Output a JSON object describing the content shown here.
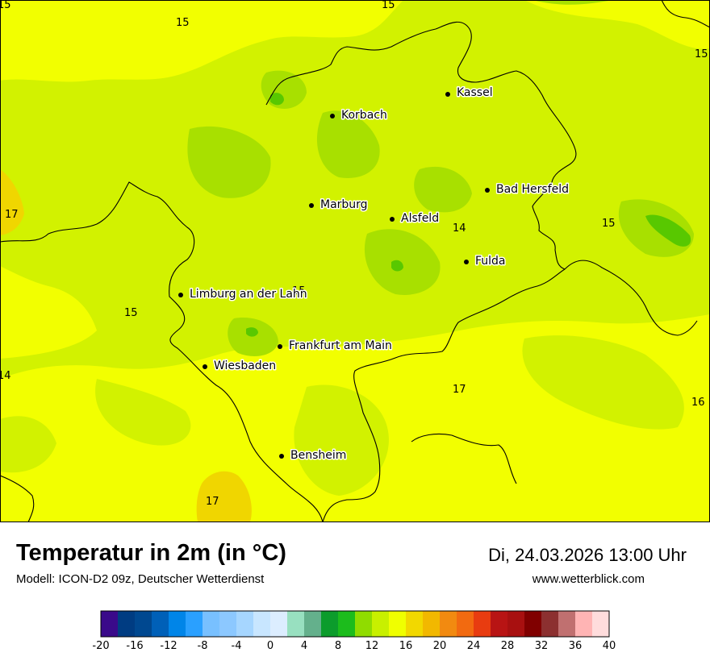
{
  "title": "Temperatur in 2m (in °C)",
  "model": "Modell: ICON-D2 09z, Deutscher Wetterdienst",
  "datetime": "Di, 24.03.2026 13:00 Uhr",
  "website": "www.wetterblick.com",
  "colors": {
    "yellow": "#f2ff00",
    "lime_light": "#d4f200",
    "lime_mid": "#a8e000",
    "green": "#58c800",
    "warm": "#f0d600"
  },
  "cities": [
    {
      "name": "Kassel"
    },
    {
      "name": "Korbach"
    },
    {
      "name": "Bad Hersfeld"
    },
    {
      "name": "Marburg"
    },
    {
      "name": "Alsfeld"
    },
    {
      "name": "Fulda"
    },
    {
      "name": "Limburg an der Lahn"
    },
    {
      "name": "Frankfurt am Main"
    },
    {
      "name": "Wiesbaden"
    },
    {
      "name": "Bensheim"
    }
  ],
  "isotherm_labels": [
    {
      "text": "15"
    },
    {
      "text": "15"
    },
    {
      "text": "15"
    },
    {
      "text": "15"
    },
    {
      "text": "17"
    },
    {
      "text": "15"
    },
    {
      "text": "14"
    },
    {
      "text": "15"
    },
    {
      "text": "15"
    },
    {
      "text": "14"
    },
    {
      "text": "17"
    },
    {
      "text": "16"
    },
    {
      "text": "17"
    }
  ],
  "legend": {
    "colors": [
      "#3a0a8a",
      "#003c82",
      "#004890",
      "#0060b8",
      "#0085e8",
      "#2aa0ff",
      "#78c0ff",
      "#8cc8ff",
      "#a6d6ff",
      "#c8e6ff",
      "#dcedff",
      "#98e0c0",
      "#64b08c",
      "#0c9c2c",
      "#1cbc1c",
      "#90dc00",
      "#c8f000",
      "#f0ff00",
      "#f2d800",
      "#f2b800",
      "#f28a10",
      "#f26a10",
      "#e83c10",
      "#b81414",
      "#a81010",
      "#800000",
      "#8c3030",
      "#c07070",
      "#ffb4b4",
      "#ffdcdc"
    ],
    "ticks": [
      "-20",
      "-16",
      "-12",
      "-8",
      "-4",
      "0",
      "4",
      "8",
      "12",
      "16",
      "20",
      "24",
      "28",
      "32",
      "36",
      "40"
    ]
  }
}
